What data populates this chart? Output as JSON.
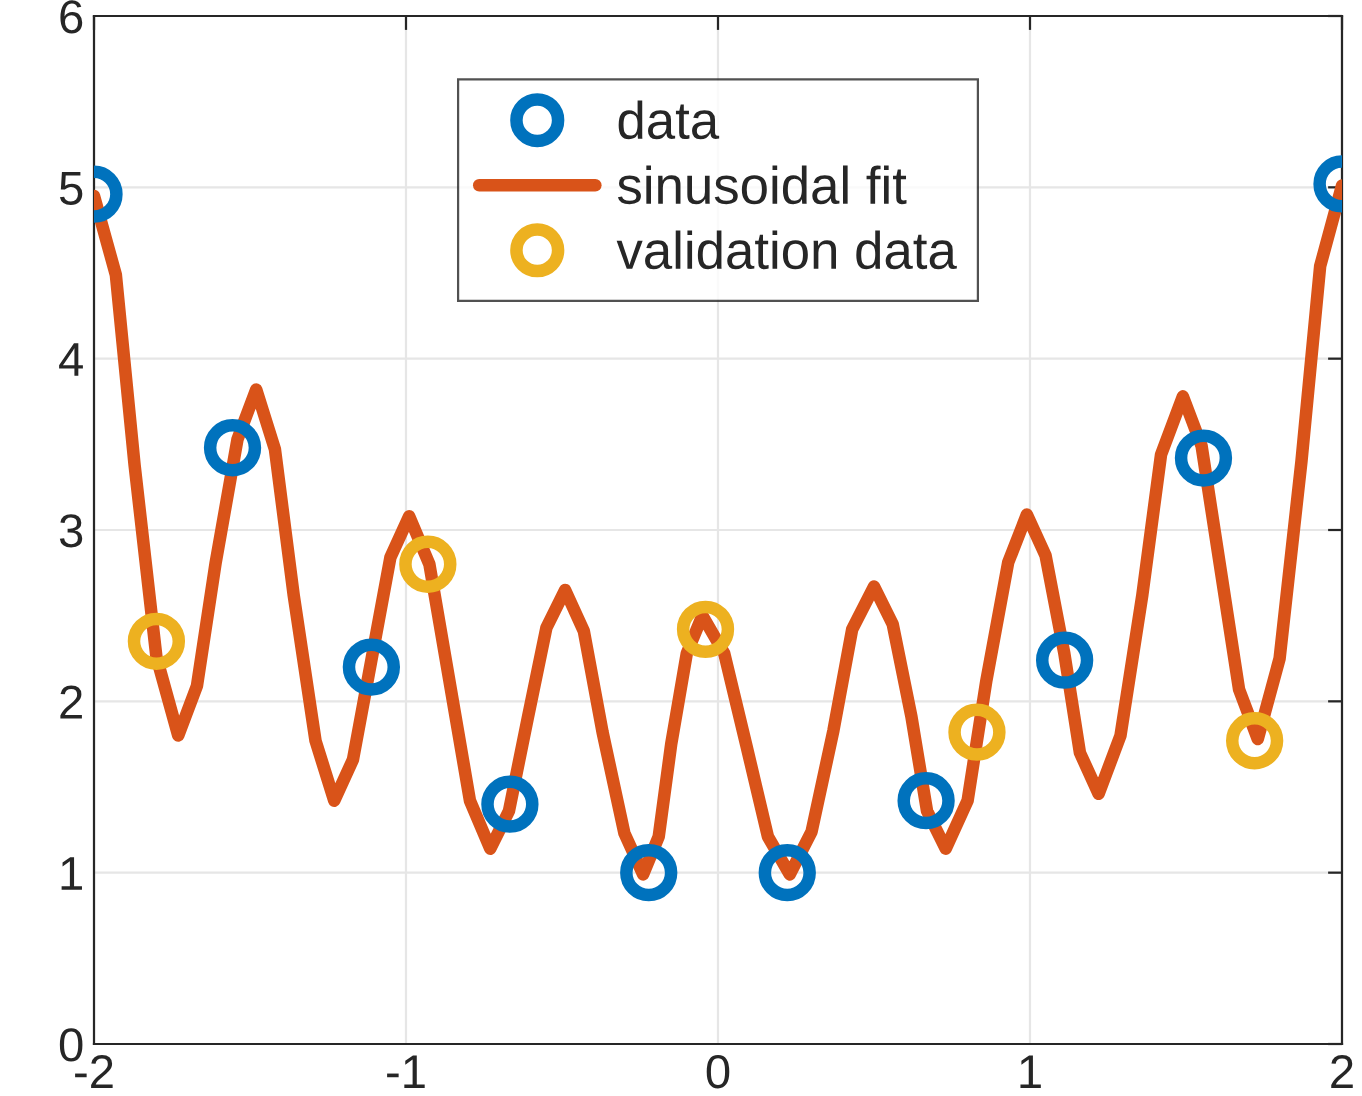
{
  "chart_data": {
    "type": "scatter",
    "xlim": [
      -2,
      2
    ],
    "xticks": [
      -2,
      -1,
      0,
      1,
      2
    ],
    "ylim": [
      0,
      6
    ],
    "yticks": [
      0,
      1,
      2,
      3,
      4,
      5,
      6
    ],
    "grid": true,
    "legend": "top",
    "series": [
      {
        "name": "data",
        "marker": "circle",
        "color": "#0072bd",
        "x": [
          -2,
          -1.556,
          -1.111,
          -0.667,
          -0.222,
          0.222,
          0.667,
          1.111,
          1.556,
          2
        ],
        "values": [
          4.96,
          3.48,
          2.2,
          1.4,
          1.0,
          1.0,
          1.42,
          2.24,
          3.42,
          5.02
        ]
      },
      {
        "name": "sinusoidal fit",
        "type": "line",
        "marker": "none",
        "line_style": "solid",
        "color": "#d95319",
        "x": [
          -2,
          -1.93,
          -1.87,
          -1.8,
          -1.73,
          -1.67,
          -1.61,
          -1.54,
          -1.48,
          -1.42,
          -1.36,
          -1.29,
          -1.23,
          -1.17,
          -1.11,
          -1.05,
          -0.99,
          -0.925,
          -0.86,
          -0.795,
          -0.73,
          -0.67,
          -0.61,
          -0.55,
          -0.49,
          -0.43,
          -0.37,
          -0.3,
          -0.24,
          -0.19,
          -0.15,
          -0.1,
          -0.05,
          0.02,
          0.09,
          0.16,
          0.23,
          0.3,
          0.37,
          0.43,
          0.5,
          0.56,
          0.62,
          0.67,
          0.73,
          0.8,
          0.86,
          0.93,
          0.99,
          1.05,
          1.11,
          1.16,
          1.22,
          1.29,
          1.36,
          1.42,
          1.49,
          1.55,
          1.61,
          1.67,
          1.73,
          1.8,
          1.87,
          1.93,
          2
        ],
        "values": [
          4.95,
          4.49,
          3.38,
          2.26,
          1.8,
          2.09,
          2.81,
          3.53,
          3.82,
          3.47,
          2.62,
          1.77,
          1.42,
          1.66,
          2.25,
          2.84,
          3.08,
          2.8,
          2.11,
          1.42,
          1.14,
          1.36,
          1.9,
          2.43,
          2.65,
          2.41,
          1.82,
          1.23,
          0.99,
          1.21,
          1.75,
          2.28,
          2.5,
          2.28,
          1.75,
          1.21,
          0.99,
          1.24,
          1.83,
          2.42,
          2.67,
          2.45,
          1.91,
          1.36,
          1.14,
          1.42,
          2.12,
          2.81,
          3.09,
          2.85,
          2.28,
          1.7,
          1.46,
          1.8,
          2.62,
          3.44,
          3.78,
          3.49,
          2.78,
          2.07,
          1.78,
          2.25,
          3.4,
          4.54,
          5.01
        ]
      },
      {
        "name": "validation data",
        "marker": "circle",
        "color": "#edb120",
        "x": [
          -1.8,
          -0.93,
          -0.04,
          0.83,
          1.72
        ],
        "values": [
          2.35,
          2.8,
          2.42,
          1.82,
          1.77
        ]
      }
    ]
  }
}
